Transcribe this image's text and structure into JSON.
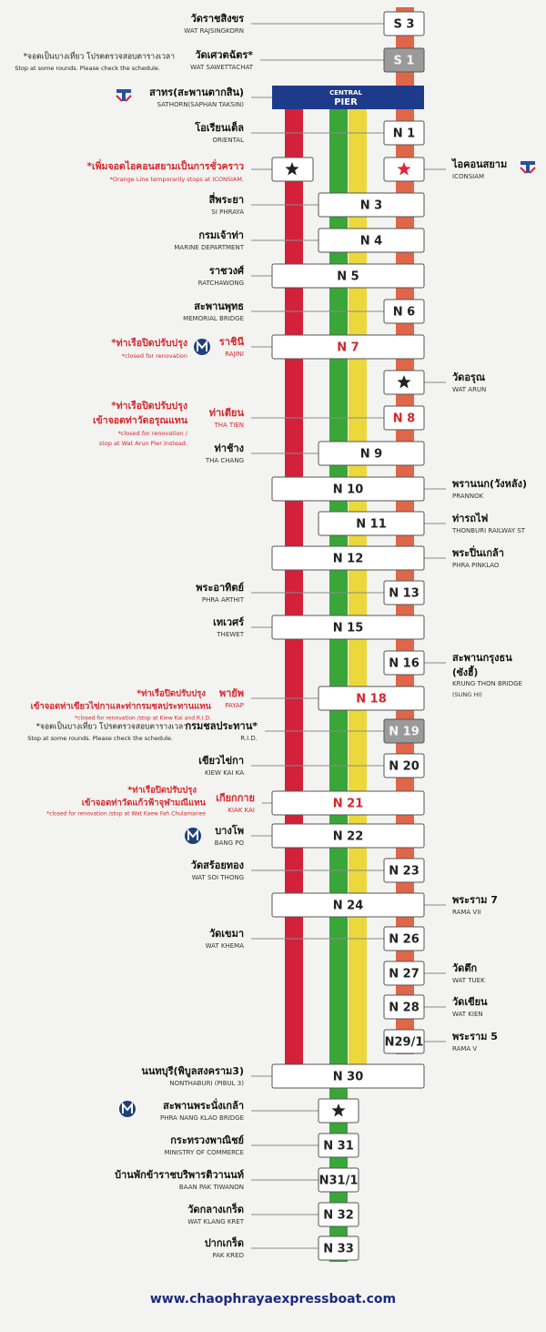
{
  "stops": [
    {
      "code": "S 3",
      "th": "วัดราชสิงขร",
      "en": "WAT RAJSINGKORN"
    },
    {
      "code": "S 1",
      "th": "วัดเศวตฉัตร*",
      "en": "WAT SAWETTACHAT",
      "notes": [
        "*จอดเป็นบางเที่ยว โปรดตรวจสอบตารางเวลา",
        "Stop at some rounds. Please check the schedule."
      ]
    },
    {
      "code_label": "CENTRAL",
      "code": "PIER",
      "th": "สาทร(สะพานตากสิน)",
      "en": "SATHORN(SAPHAN TAKSIN)"
    },
    {
      "code": "N 1",
      "th": "โอเรียนเต็ล",
      "en": "ORIENTAL"
    },
    {
      "th": "ไอคอนสยาม",
      "en": "ICONSIAM",
      "notes": [
        "*เพิ่มจอดไอคอนสยามเป็นการชั่วคราว",
        "*Orange Line temporarily stops at ICONSIAM."
      ]
    },
    {
      "code": "N 3",
      "th": "สี่พระยา",
      "en": "SI PHRAYA"
    },
    {
      "code": "N 4",
      "th": "กรมเจ้าท่า",
      "en": "MARINE DEPARTMENT"
    },
    {
      "code": "N 5",
      "th": "ราชวงศ์",
      "en": "RATCHAWONG"
    },
    {
      "code": "N 6",
      "th": "สะพานพุทธ",
      "en": "MEMORIAL BRIDGE"
    },
    {
      "code": "N 7",
      "th": "ราชินี",
      "en": "RAJINI",
      "notes": [
        "*ท่าเรือปิดปรับปรุง",
        "*closed for renovation"
      ]
    },
    {
      "th": "วัดอรุณ",
      "en": "WAT ARUN"
    },
    {
      "code": "N 8",
      "th": "ท่าเตียน",
      "en": "THA TIEN",
      "notes": [
        "*ท่าเรือปิดปรับปรุง",
        "เข้าจอดท่าวัดอรุณแทน",
        "*closed for renovation /",
        "stop at Wat Arun Pier instead."
      ]
    },
    {
      "code": "N 9",
      "th": "ท่าช้าง",
      "en": "THA CHANG"
    },
    {
      "code": "N 10",
      "th": "พรานนก(วังหลัง)",
      "en": "PRANNOK"
    },
    {
      "code": "N 11",
      "th": "ท่ารถไฟ",
      "en": "THONBURI RAILWAY ST"
    },
    {
      "code": "N 12",
      "th": "พระปิ่นเกล้า",
      "en": "PHRA PINKLAO"
    },
    {
      "code": "N 13",
      "th": "พระอาทิตย์",
      "en": "PHRA ARTHIT"
    },
    {
      "code": "N 15",
      "th": "เทเวศร์",
      "en": "THEWET"
    },
    {
      "code": "N 16",
      "th": "สะพานกรุงธน",
      "en": "KRUNG THON BRIDGE",
      "notes": [
        "(ซังฮี้)",
        "(SUNG HI)"
      ]
    },
    {
      "code": "N 18",
      "th": "พายัพ",
      "en": "PAYAP",
      "notes": [
        "*ท่าเรือปิดปรับปรุง",
        "เข้าจอดท่าเขียวไข่กาและท่ากรมชลประทานแทน",
        "*closed for renovation /stop at Kiew Kai and R.I.D."
      ]
    },
    {
      "code": "N 19",
      "th": "กรมชลประทาน*",
      "en": "R.I.D.",
      "notes": [
        "*จอดเป็นบางเที่ยว โปรดตรวจสอบตารางเวลา",
        "Stop at some rounds. Please check the schedule."
      ]
    },
    {
      "code": "N 20",
      "th": "เขียวไข่กา",
      "en": "KIEW KAI KA"
    },
    {
      "code": "N 21",
      "th": "เกียกกาย",
      "en": "KIAK KAI",
      "notes": [
        "*ท่าเรือปิดปรับปรุง",
        "เข้าจอดท่าวัดแก้วฟ้าจุฬามณีแทน",
        "*closed for renovation /stop at Wat Kaew Fah Chulamanee"
      ]
    },
    {
      "code": "N 22",
      "th": "บางโพ",
      "en": "BANG PO"
    },
    {
      "code": "N 23",
      "th": "วัดสร้อยทอง",
      "en": "WAT SOI THONG"
    },
    {
      "code": "N 24",
      "th": "พระราม 7",
      "en": "RAMA VII"
    },
    {
      "code": "N 26",
      "th": "วัดเขมา",
      "en": "WAT KHEMA"
    },
    {
      "code": "N 27",
      "th": "วัดตึก",
      "en": "WAT TUEK"
    },
    {
      "code": "N 28",
      "th": "วัดเขียน",
      "en": "WAT KIEN"
    },
    {
      "code": "N29/1",
      "th": "พระราม 5",
      "en": "RAMA V"
    },
    {
      "code": "N 30",
      "th": "นนทบุรี(พิบูลสงคราม3)",
      "en": "NONTHABURI (PIBUL 3)"
    },
    {
      "th": "สะพานพระนั่งเกล้า",
      "en": "PHRA NANG KLAO BRIDGE"
    },
    {
      "code": "N 31",
      "th": "กระทรวงพาณิชย์",
      "en": "MINISTRY OF COMMERCE"
    },
    {
      "code": "N31/1",
      "th": "บ้านพักข้าราชบริพารติวานนท์",
      "en": "BAAN PAK TIWANON"
    },
    {
      "code": "N 32",
      "th": "วัดกลางเกร็ด",
      "en": "WAT KLANG KRET"
    },
    {
      "code": "N 33",
      "th": "ปากเกร็ด",
      "en": "PAK KRED"
    }
  ],
  "website": "www.chaophrayaexpressboat.com"
}
